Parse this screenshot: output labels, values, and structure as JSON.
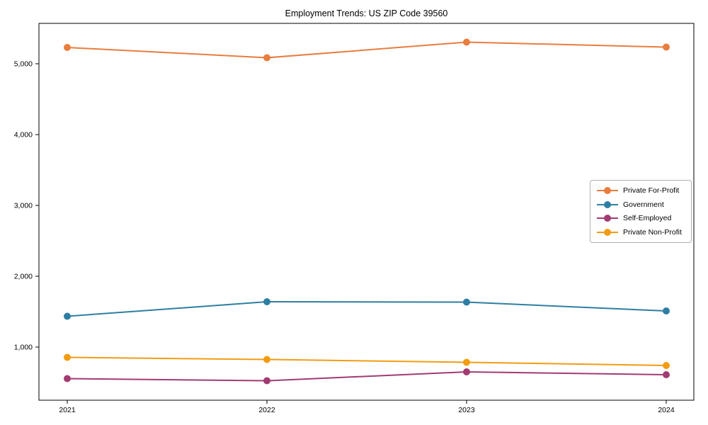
{
  "chart_data": {
    "type": "line",
    "title": "Employment Trends: US ZIP Code 39560",
    "x": [
      2021,
      2022,
      2023,
      2024
    ],
    "x_tick_labels": [
      "2021",
      "2022",
      "2023",
      "2024"
    ],
    "y_tick_values": [
      1000,
      2000,
      3000,
      4000,
      5000
    ],
    "y_tick_labels": [
      "1,000",
      "2,000",
      "3,000",
      "4,000",
      "5,000"
    ],
    "ylim": [
      250,
      5570
    ],
    "xlabel": "",
    "ylabel": "",
    "grid": false,
    "legend_position": "center-right",
    "marker": "circle",
    "series": [
      {
        "name": "Private For-Profit",
        "color": "#E87D3E",
        "values": [
          5230,
          5085,
          5305,
          5235
        ]
      },
      {
        "name": "Government",
        "color": "#2E7EA3",
        "values": [
          1435,
          1640,
          1635,
          1510
        ]
      },
      {
        "name": "Self-Employed",
        "color": "#A23B72",
        "values": [
          555,
          525,
          650,
          610
        ]
      },
      {
        "name": "Private Non-Profit",
        "color": "#F29C12",
        "values": [
          855,
          825,
          785,
          740
        ]
      }
    ]
  }
}
